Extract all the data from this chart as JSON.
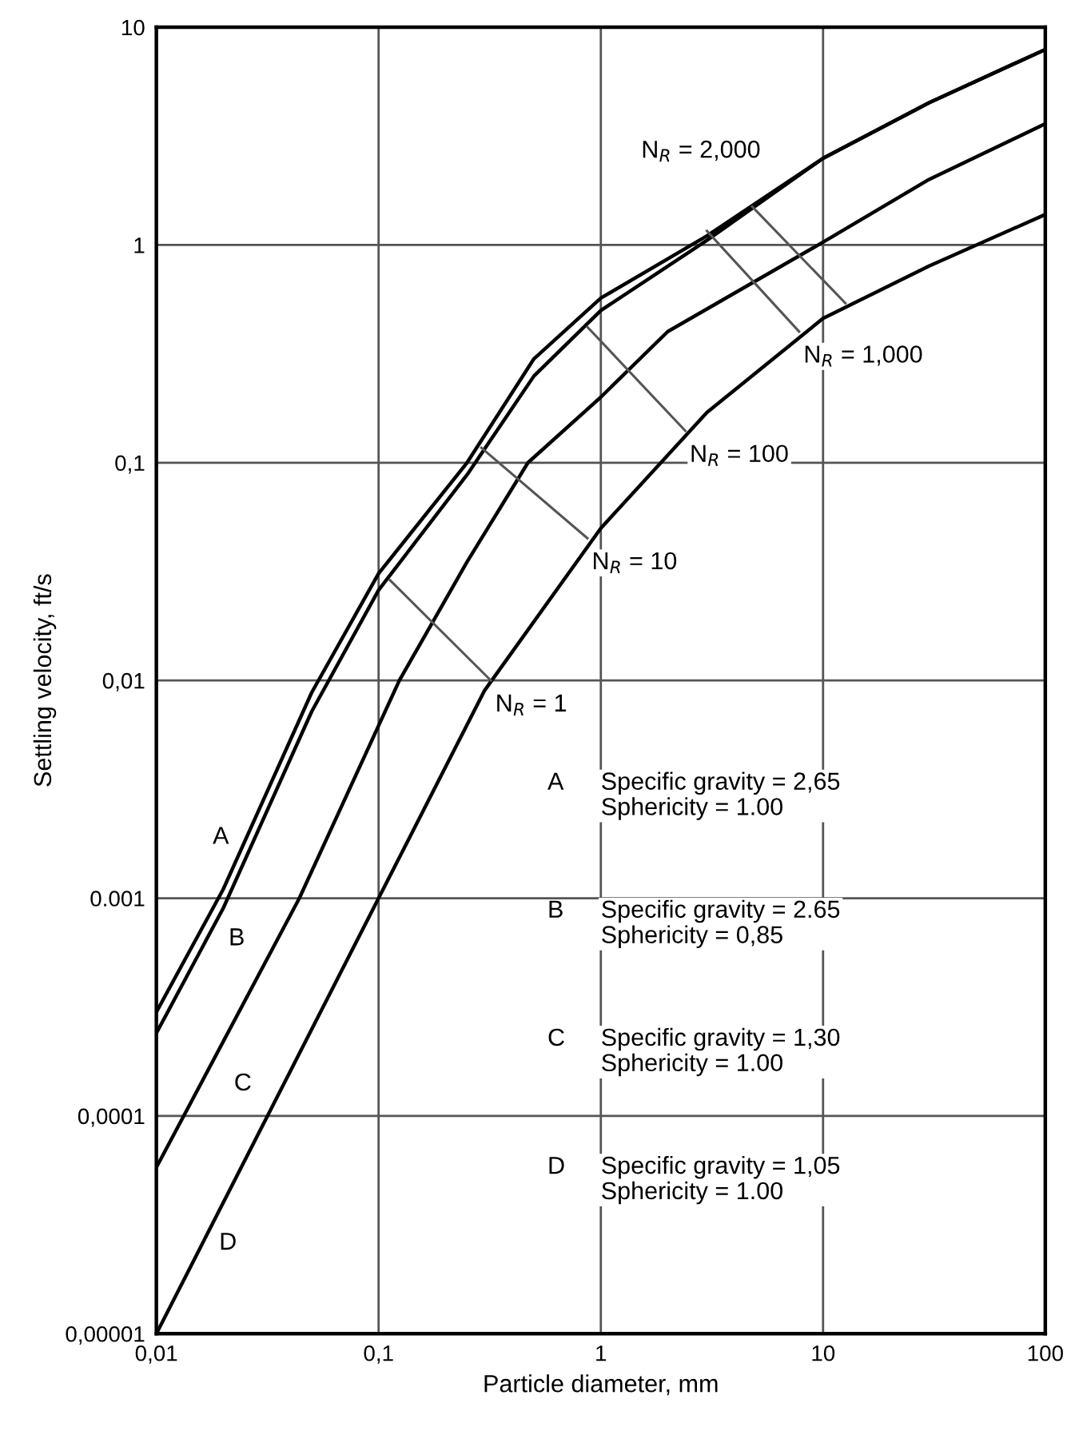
{
  "chart_data": {
    "type": "line",
    "xlabel": "Particle diameter, mm",
    "ylabel": "Settling velocity, ft/s",
    "log": "xy",
    "grid": true,
    "xlim": [
      0.01,
      100
    ],
    "xticks": [
      {
        "value": 0.01,
        "label": "0,01"
      },
      {
        "value": 0.1,
        "label": "0,1"
      },
      1,
      10,
      100
    ],
    "ylim": [
      1e-05,
      10
    ],
    "yticks": [
      {
        "value": 1e-05,
        "label": "0,00001"
      },
      {
        "value": 0.0001,
        "label": "0,0001"
      },
      {
        "value": 0.001,
        "label": "0.001"
      },
      {
        "value": 0.01,
        "label": "0,01"
      },
      {
        "value": 0.1,
        "label": "0,1"
      },
      1,
      10
    ],
    "series": [
      {
        "color": "#000000",
        "x": [
          0.01,
          0.02,
          0.05,
          0.1,
          0.25,
          0.5,
          1,
          3,
          10,
          30,
          100
        ],
        "values": [
          0.0003,
          0.0011,
          0.0088,
          0.031,
          0.1,
          0.3,
          0.57,
          1.1,
          2.5,
          4.5,
          7.9
        ]
      },
      {
        "color": "#000000",
        "x": [
          0.01,
          0.02,
          0.05,
          0.1,
          0.25,
          0.5,
          1,
          3,
          10,
          30,
          100
        ],
        "values": [
          0.00024,
          0.0009,
          0.0072,
          0.026,
          0.088,
          0.25,
          0.5,
          1.05,
          2.5,
          4.5,
          7.9
        ]
      },
      {
        "color": "#000000",
        "x": [
          0.01,
          0.044,
          0.124,
          0.25,
          0.47,
          1,
          2,
          10,
          30,
          100
        ],
        "values": [
          5.8e-05,
          0.001,
          0.01,
          0.035,
          0.1,
          0.2,
          0.4,
          1.03,
          2,
          3.6
        ]
      },
      {
        "color": "#000000",
        "x": [
          0.01,
          0.1,
          0.3,
          1,
          3,
          10,
          30,
          100
        ],
        "values": [
          1e-05,
          0.001,
          0.009,
          0.05,
          0.17,
          0.46,
          0.8,
          1.38
        ]
      },
      {
        "name": "N$_{R}$ = 1",
        "color": "#555555",
        "x": [
          0.112,
          0.32
        ],
        "values": [
          0.029,
          0.01
        ]
      },
      {
        "name": "N$_{R}$ = 10",
        "color": "#555555",
        "x": [
          0.29,
          0.87
        ],
        "values": [
          0.117,
          0.045
        ]
      },
      {
        "name": "N$_{R}$ = 100",
        "color": "#555555",
        "x": [
          0.87,
          2.4
        ],
        "values": [
          0.42,
          0.14
        ]
      },
      {
        "name": "N$_{R}$ = 1,000",
        "color": "#555555",
        "x": [
          3.0,
          7.8
        ],
        "values": [
          1.16,
          0.4
        ]
      },
      {
        "name": "N$_{R}$ = 2,000",
        "color": "#555555",
        "x": [
          12.6,
          4.8
        ],
        "values": [
          0.54,
          1.5
        ]
      }
    ],
    "annotations": [
      {
        "text": "A",
        "x": 0.0195,
        "y": 0.0019
      },
      {
        "text": "B",
        "x": 0.023,
        "y": 0.00065
      },
      {
        "text": "C",
        "x": 0.0245,
        "y": 0.00014
      },
      {
        "text": "D",
        "x": 0.021,
        "y": 2.6e-05
      },
      "A",
      "Specific gravity = 2,65\nSphericity = 1.00",
      "B",
      "Specific gravity = 2.65\nSphericity = 0,85",
      "C",
      "Specific gravity = 1,30\nSphericity = 1.00",
      "D",
      "Specific gravity = 1,05\nSphericity = 1.00"
    ]
  }
}
